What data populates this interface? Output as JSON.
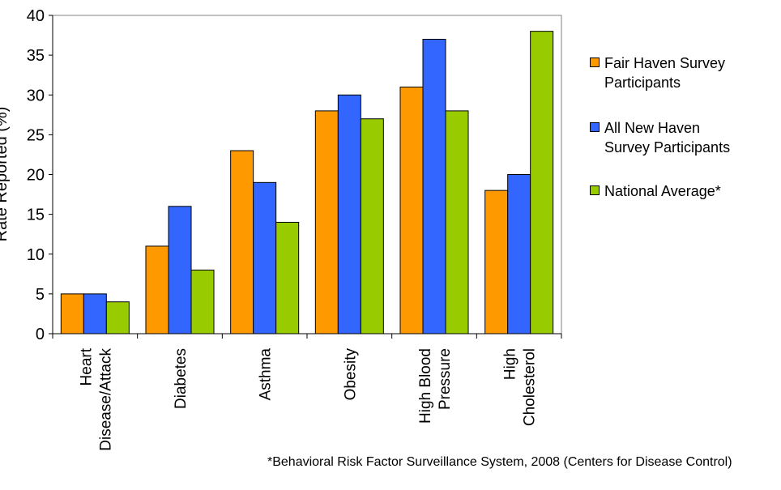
{
  "chart_data": {
    "type": "bar",
    "ylabel": "Rate Reported (%)",
    "xlabel": "",
    "ylim": [
      0,
      40
    ],
    "yticks": [
      0,
      5,
      10,
      15,
      20,
      25,
      30,
      35,
      40
    ],
    "categories": [
      "Heart Disease/Attack",
      "Diabetes",
      "Asthma",
      "Obesity",
      "High Blood Pressure",
      "High Cholesterol"
    ],
    "category_label_lines": [
      [
        "Heart",
        "Disease/Attack"
      ],
      [
        "Diabetes"
      ],
      [
        "Asthma"
      ],
      [
        "Obesity"
      ],
      [
        "High Blood",
        "Pressure"
      ],
      [
        "High",
        "Cholesterol"
      ]
    ],
    "series": [
      {
        "name": "Fair Haven Survey Participants",
        "color": "#FF9900",
        "values": [
          5,
          11,
          23,
          28,
          31,
          18
        ]
      },
      {
        "name": "All New Haven Survey Participants",
        "color": "#3366FF",
        "values": [
          5,
          16,
          19,
          30,
          37,
          20
        ]
      },
      {
        "name": "National Average*",
        "color": "#99CC00",
        "values": [
          4,
          8,
          14,
          27,
          28,
          38
        ]
      }
    ],
    "legend": {
      "placement": "right",
      "items": [
        {
          "lines": [
            "Fair Haven Survey",
            "Participants"
          ]
        },
        {
          "lines": [
            "All New Haven",
            "Survey Participants"
          ]
        },
        {
          "lines": [
            "National Average*"
          ]
        }
      ]
    },
    "grid": false,
    "annotation": "*Behavioral Risk Factor Surveillance System, 2008 (Centers for Disease Control)"
  }
}
